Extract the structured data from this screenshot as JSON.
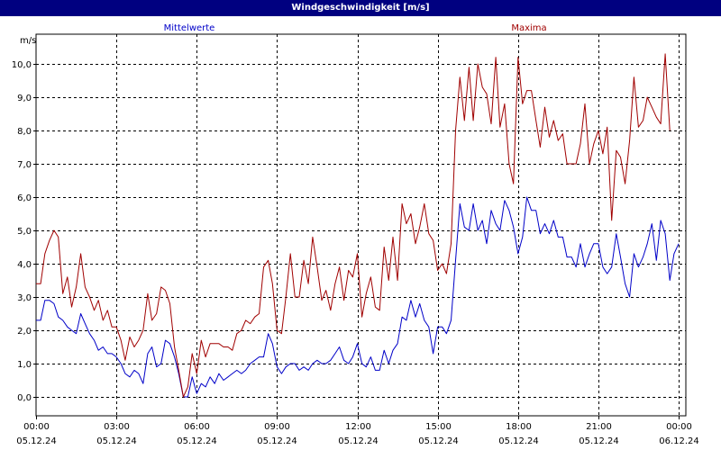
{
  "window": {
    "title": "Windgeschwindigkeit [m/s]"
  },
  "colors": {
    "titlebar": "#000080",
    "mean": "#0000c8",
    "max": "#a00000",
    "grid": "#000000"
  },
  "chart_data": {
    "type": "line",
    "title": "Windgeschwindigkeit [m/s]",
    "ylabel": "m/s",
    "ylim": [
      -0.5,
      11.0
    ],
    "yticks": [
      0.0,
      1.0,
      2.0,
      3.0,
      4.0,
      5.0,
      6.0,
      7.0,
      8.0,
      9.0,
      10.0
    ],
    "ytick_labels": [
      "0,0",
      "1,0",
      "2,0",
      "3,0",
      "4,0",
      "5,0",
      "6,0",
      "7,0",
      "8,0",
      "9,0",
      "10,0"
    ],
    "xlim_hours": [
      0,
      24
    ],
    "xticks": [
      {
        "hour": 0,
        "time": "00:00",
        "date": "05.12.24"
      },
      {
        "hour": 3,
        "time": "03:00",
        "date": "05.12.24"
      },
      {
        "hour": 6,
        "time": "06:00",
        "date": "05.12.24"
      },
      {
        "hour": 9,
        "time": "09:00",
        "date": "05.12.24"
      },
      {
        "hour": 12,
        "time": "12:00",
        "date": "05.12.24"
      },
      {
        "hour": 15,
        "time": "15:00",
        "date": "05.12.24"
      },
      {
        "hour": 18,
        "time": "18:00",
        "date": "05.12.24"
      },
      {
        "hour": 21,
        "time": "21:00",
        "date": "05.12.24"
      },
      {
        "hour": 24,
        "time": "00:00",
        "date": "06.12.24"
      }
    ],
    "grid": true,
    "legend_placement": "top",
    "series": [
      {
        "name": "Mittelwerte",
        "color": "#0000c8",
        "points": [
          [
            0.0,
            2.3
          ],
          [
            0.17,
            2.3
          ],
          [
            0.33,
            2.9
          ],
          [
            0.5,
            2.9
          ],
          [
            0.67,
            2.8
          ],
          [
            0.83,
            2.4
          ],
          [
            1.0,
            2.3
          ],
          [
            1.17,
            2.1
          ],
          [
            1.33,
            2.0
          ],
          [
            1.5,
            1.9
          ],
          [
            1.67,
            2.5
          ],
          [
            1.83,
            2.2
          ],
          [
            2.0,
            1.9
          ],
          [
            2.17,
            1.7
          ],
          [
            2.33,
            1.4
          ],
          [
            2.5,
            1.5
          ],
          [
            2.67,
            1.3
          ],
          [
            2.83,
            1.3
          ],
          [
            3.0,
            1.2
          ],
          [
            3.17,
            1.0
          ],
          [
            3.33,
            0.7
          ],
          [
            3.5,
            0.6
          ],
          [
            3.67,
            0.8
          ],
          [
            3.83,
            0.7
          ],
          [
            4.0,
            0.4
          ],
          [
            4.17,
            1.3
          ],
          [
            4.33,
            1.5
          ],
          [
            4.5,
            0.9
          ],
          [
            4.67,
            1.0
          ],
          [
            4.83,
            1.7
          ],
          [
            5.0,
            1.6
          ],
          [
            5.17,
            1.2
          ],
          [
            5.33,
            0.7
          ],
          [
            5.5,
            0.0
          ],
          [
            5.67,
            0.0
          ],
          [
            5.83,
            0.6
          ],
          [
            6.0,
            0.1
          ],
          [
            6.17,
            0.4
          ],
          [
            6.33,
            0.3
          ],
          [
            6.5,
            0.6
          ],
          [
            6.67,
            0.4
          ],
          [
            6.83,
            0.7
          ],
          [
            7.0,
            0.5
          ],
          [
            7.17,
            0.6
          ],
          [
            7.33,
            0.7
          ],
          [
            7.5,
            0.8
          ],
          [
            7.67,
            0.7
          ],
          [
            7.83,
            0.8
          ],
          [
            8.0,
            1.0
          ],
          [
            8.17,
            1.1
          ],
          [
            8.33,
            1.2
          ],
          [
            8.5,
            1.2
          ],
          [
            8.67,
            1.9
          ],
          [
            8.83,
            1.6
          ],
          [
            9.0,
            0.9
          ],
          [
            9.17,
            0.7
          ],
          [
            9.33,
            0.9
          ],
          [
            9.5,
            1.0
          ],
          [
            9.67,
            1.0
          ],
          [
            9.83,
            0.8
          ],
          [
            10.0,
            0.9
          ],
          [
            10.17,
            0.8
          ],
          [
            10.33,
            1.0
          ],
          [
            10.5,
            1.1
          ],
          [
            10.67,
            1.0
          ],
          [
            10.83,
            1.0
          ],
          [
            11.0,
            1.1
          ],
          [
            11.17,
            1.3
          ],
          [
            11.33,
            1.5
          ],
          [
            11.5,
            1.1
          ],
          [
            11.67,
            1.0
          ],
          [
            11.83,
            1.2
          ],
          [
            12.0,
            1.6
          ],
          [
            12.17,
            1.0
          ],
          [
            12.33,
            0.9
          ],
          [
            12.5,
            1.2
          ],
          [
            12.67,
            0.8
          ],
          [
            12.83,
            0.8
          ],
          [
            13.0,
            1.4
          ],
          [
            13.17,
            1.0
          ],
          [
            13.33,
            1.4
          ],
          [
            13.5,
            1.6
          ],
          [
            13.67,
            2.4
          ],
          [
            13.83,
            2.3
          ],
          [
            14.0,
            2.9
          ],
          [
            14.17,
            2.4
          ],
          [
            14.33,
            2.8
          ],
          [
            14.5,
            2.3
          ],
          [
            14.67,
            2.1
          ],
          [
            14.83,
            1.3
          ],
          [
            15.0,
            2.1
          ],
          [
            15.17,
            2.1
          ],
          [
            15.33,
            1.9
          ],
          [
            15.5,
            2.3
          ],
          [
            15.67,
            4.1
          ],
          [
            15.83,
            5.8
          ],
          [
            16.0,
            5.1
          ],
          [
            16.17,
            5.0
          ],
          [
            16.33,
            5.8
          ],
          [
            16.5,
            5.0
          ],
          [
            16.67,
            5.3
          ],
          [
            16.83,
            4.6
          ],
          [
            17.0,
            5.6
          ],
          [
            17.17,
            5.2
          ],
          [
            17.33,
            5.0
          ],
          [
            17.5,
            5.9
          ],
          [
            17.67,
            5.6
          ],
          [
            17.83,
            5.1
          ],
          [
            18.0,
            4.3
          ],
          [
            18.17,
            4.8
          ],
          [
            18.33,
            6.0
          ],
          [
            18.5,
            5.6
          ],
          [
            18.67,
            5.6
          ],
          [
            18.83,
            4.9
          ],
          [
            19.0,
            5.2
          ],
          [
            19.17,
            4.9
          ],
          [
            19.33,
            5.3
          ],
          [
            19.5,
            4.8
          ],
          [
            19.67,
            4.8
          ],
          [
            19.83,
            4.2
          ],
          [
            20.0,
            4.2
          ],
          [
            20.17,
            3.9
          ],
          [
            20.33,
            4.6
          ],
          [
            20.5,
            3.9
          ],
          [
            20.67,
            4.3
          ],
          [
            20.83,
            4.6
          ],
          [
            21.0,
            4.6
          ],
          [
            21.17,
            3.9
          ],
          [
            21.33,
            3.7
          ],
          [
            21.5,
            3.9
          ],
          [
            21.67,
            4.9
          ],
          [
            21.83,
            4.2
          ],
          [
            22.0,
            3.4
          ],
          [
            22.17,
            3.0
          ],
          [
            22.33,
            4.3
          ],
          [
            22.5,
            3.9
          ],
          [
            22.67,
            4.2
          ],
          [
            22.83,
            4.6
          ],
          [
            23.0,
            5.2
          ],
          [
            23.17,
            4.1
          ],
          [
            23.33,
            5.3
          ],
          [
            23.5,
            4.9
          ],
          [
            23.67,
            3.5
          ],
          [
            23.83,
            4.3
          ],
          [
            24.0,
            4.6
          ]
        ]
      },
      {
        "name": "Maxima",
        "color": "#a00000",
        "points": [
          [
            0.0,
            3.4
          ],
          [
            0.17,
            3.4
          ],
          [
            0.33,
            4.3
          ],
          [
            0.5,
            4.7
          ],
          [
            0.67,
            5.0
          ],
          [
            0.83,
            4.8
          ],
          [
            1.0,
            3.1
          ],
          [
            1.17,
            3.6
          ],
          [
            1.33,
            2.7
          ],
          [
            1.5,
            3.3
          ],
          [
            1.67,
            4.3
          ],
          [
            1.83,
            3.3
          ],
          [
            2.0,
            3.0
          ],
          [
            2.17,
            2.6
          ],
          [
            2.33,
            2.9
          ],
          [
            2.5,
            2.3
          ],
          [
            2.67,
            2.6
          ],
          [
            2.83,
            2.1
          ],
          [
            3.0,
            2.1
          ],
          [
            3.17,
            1.7
          ],
          [
            3.33,
            1.1
          ],
          [
            3.5,
            1.8
          ],
          [
            3.67,
            1.5
          ],
          [
            3.83,
            1.7
          ],
          [
            4.0,
            2.0
          ],
          [
            4.17,
            3.1
          ],
          [
            4.33,
            2.3
          ],
          [
            4.5,
            2.5
          ],
          [
            4.67,
            3.3
          ],
          [
            4.83,
            3.2
          ],
          [
            5.0,
            2.8
          ],
          [
            5.17,
            1.5
          ],
          [
            5.33,
            0.8
          ],
          [
            5.5,
            0.0
          ],
          [
            5.67,
            0.3
          ],
          [
            5.83,
            1.3
          ],
          [
            6.0,
            0.7
          ],
          [
            6.17,
            1.7
          ],
          [
            6.33,
            1.2
          ],
          [
            6.5,
            1.6
          ],
          [
            6.67,
            1.6
          ],
          [
            6.83,
            1.6
          ],
          [
            7.0,
            1.5
          ],
          [
            7.17,
            1.5
          ],
          [
            7.33,
            1.4
          ],
          [
            7.5,
            1.9
          ],
          [
            7.67,
            2.0
          ],
          [
            7.83,
            2.3
          ],
          [
            8.0,
            2.2
          ],
          [
            8.17,
            2.4
          ],
          [
            8.33,
            2.5
          ],
          [
            8.5,
            3.9
          ],
          [
            8.67,
            4.1
          ],
          [
            8.83,
            3.4
          ],
          [
            9.0,
            2.0
          ],
          [
            9.17,
            1.9
          ],
          [
            9.33,
            3.0
          ],
          [
            9.5,
            4.3
          ],
          [
            9.67,
            3.0
          ],
          [
            9.83,
            3.0
          ],
          [
            10.0,
            4.1
          ],
          [
            10.17,
            3.4
          ],
          [
            10.33,
            4.8
          ],
          [
            10.5,
            3.9
          ],
          [
            10.67,
            2.9
          ],
          [
            10.83,
            3.2
          ],
          [
            11.0,
            2.6
          ],
          [
            11.17,
            3.4
          ],
          [
            11.33,
            3.9
          ],
          [
            11.5,
            2.9
          ],
          [
            11.67,
            3.8
          ],
          [
            11.83,
            3.6
          ],
          [
            12.0,
            4.3
          ],
          [
            12.17,
            2.4
          ],
          [
            12.33,
            3.1
          ],
          [
            12.5,
            3.6
          ],
          [
            12.67,
            2.7
          ],
          [
            12.83,
            2.6
          ],
          [
            13.0,
            4.5
          ],
          [
            13.17,
            3.5
          ],
          [
            13.33,
            4.8
          ],
          [
            13.5,
            3.5
          ],
          [
            13.67,
            5.8
          ],
          [
            13.83,
            5.2
          ],
          [
            14.0,
            5.5
          ],
          [
            14.17,
            4.6
          ],
          [
            14.33,
            5.1
          ],
          [
            14.5,
            5.8
          ],
          [
            14.67,
            4.9
          ],
          [
            14.83,
            4.7
          ],
          [
            15.0,
            3.8
          ],
          [
            15.17,
            4.0
          ],
          [
            15.33,
            3.7
          ],
          [
            15.5,
            4.6
          ],
          [
            15.67,
            8.0
          ],
          [
            15.83,
            9.6
          ],
          [
            16.0,
            8.3
          ],
          [
            16.17,
            9.9
          ],
          [
            16.33,
            8.3
          ],
          [
            16.5,
            10.0
          ],
          [
            16.67,
            9.3
          ],
          [
            16.83,
            9.1
          ],
          [
            17.0,
            8.2
          ],
          [
            17.17,
            10.2
          ],
          [
            17.33,
            8.1
          ],
          [
            17.5,
            8.8
          ],
          [
            17.67,
            7.0
          ],
          [
            17.83,
            6.4
          ],
          [
            18.0,
            10.2
          ],
          [
            18.17,
            8.8
          ],
          [
            18.33,
            9.2
          ],
          [
            18.5,
            9.2
          ],
          [
            18.67,
            8.3
          ],
          [
            18.83,
            7.5
          ],
          [
            19.0,
            8.7
          ],
          [
            19.17,
            7.8
          ],
          [
            19.33,
            8.3
          ],
          [
            19.5,
            7.7
          ],
          [
            19.67,
            7.9
          ],
          [
            19.83,
            7.0
          ],
          [
            20.0,
            7.0
          ],
          [
            20.17,
            7.0
          ],
          [
            20.33,
            7.6
          ],
          [
            20.5,
            8.8
          ],
          [
            20.67,
            7.0
          ],
          [
            20.83,
            7.6
          ],
          [
            21.0,
            8.0
          ],
          [
            21.17,
            7.3
          ],
          [
            21.33,
            8.1
          ],
          [
            21.5,
            5.3
          ],
          [
            21.67,
            7.4
          ],
          [
            21.83,
            7.2
          ],
          [
            22.0,
            6.4
          ],
          [
            22.17,
            7.7
          ],
          [
            22.33,
            9.6
          ],
          [
            22.5,
            8.1
          ],
          [
            22.67,
            8.3
          ],
          [
            22.83,
            9.0
          ],
          [
            23.0,
            8.7
          ],
          [
            23.17,
            8.4
          ],
          [
            23.33,
            8.2
          ],
          [
            23.5,
            10.3
          ],
          [
            23.67,
            8.0
          ]
        ]
      }
    ]
  }
}
